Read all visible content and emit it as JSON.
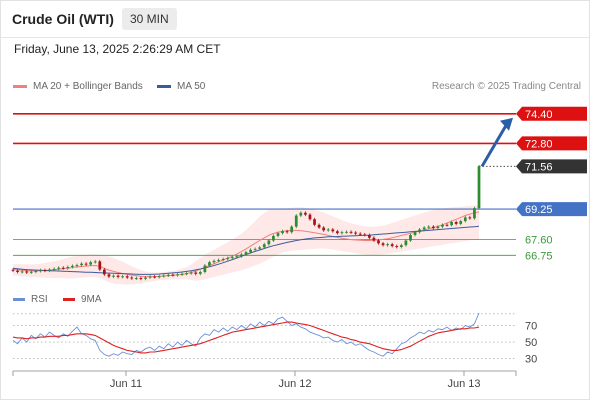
{
  "header": {
    "title": "Crude Oil (WTI)",
    "timeframe": "30 MIN"
  },
  "timestamp": "Friday, June 13, 2025 2:26:29 AM CET",
  "legend": {
    "ma20_label": "MA 20 + Bollinger Bands",
    "ma50_label": "MA 50",
    "credit": "Research © 2025 Trading Central"
  },
  "rsi_legend": {
    "rsi_label": "RSI",
    "ma_label": "9MA"
  },
  "colors": {
    "resistance": "#dd1111",
    "current": "#333333",
    "pivot": "#4472c4",
    "support": "#3a9a3a",
    "ma20": "#f08080",
    "bollinger_fill": "#fde0e0",
    "ma50": "#3b5c9a",
    "candle_up": "#2e8b2e",
    "candle_down": "#aa1111",
    "arrow": "#2b5ea8",
    "rsi": "#6a8fd8",
    "rsi_ma": "#dd2222"
  },
  "chart_data": [
    {
      "type": "candlestick",
      "title": "Crude Oil (WTI)",
      "x_ticks": [
        "Jun 11",
        "Jun 12",
        "Jun 13"
      ],
      "ylim": [
        65.2,
        75.2
      ],
      "levels": [
        {
          "value": 74.4,
          "label": "74.40",
          "kind": "resistance"
        },
        {
          "value": 72.8,
          "label": "72.80",
          "kind": "resistance"
        },
        {
          "value": 71.56,
          "label": "71.56",
          "kind": "current"
        },
        {
          "value": 69.25,
          "label": "69.25",
          "kind": "pivot"
        },
        {
          "value": 67.6,
          "label": "67.60",
          "kind": "support"
        },
        {
          "value": 66.75,
          "label": "66.75",
          "kind": "support"
        }
      ],
      "close": [
        65.92,
        65.85,
        65.88,
        65.82,
        65.86,
        65.9,
        65.95,
        65.92,
        65.98,
        66.02,
        66.08,
        66.05,
        66.12,
        66.18,
        66.22,
        66.3,
        66.25,
        66.38,
        66.42,
        65.98,
        65.72,
        65.6,
        65.65,
        65.58,
        65.62,
        65.55,
        65.5,
        65.52,
        65.48,
        65.55,
        65.6,
        65.58,
        65.62,
        65.66,
        65.7,
        65.68,
        65.72,
        65.75,
        65.78,
        65.82,
        65.75,
        65.85,
        66.2,
        66.38,
        66.45,
        66.5,
        66.55,
        66.6,
        66.65,
        66.7,
        66.8,
        66.92,
        67.05,
        67.1,
        67.18,
        67.35,
        67.55,
        67.8,
        67.95,
        68.05,
        68.0,
        68.3,
        68.9,
        69.05,
        68.95,
        68.7,
        68.4,
        68.25,
        68.1,
        68.15,
        68.05,
        67.95,
        68.0,
        68.02,
        67.98,
        67.92,
        67.88,
        67.85,
        67.7,
        67.55,
        67.4,
        67.3,
        67.35,
        67.25,
        67.2,
        67.3,
        67.55,
        67.85,
        68.0,
        68.15,
        68.25,
        68.3,
        68.22,
        68.3,
        68.4,
        68.38,
        68.55,
        68.45,
        68.6,
        68.8,
        68.75,
        69.3,
        71.56
      ],
      "ma20": [
        65.98,
        65.96,
        65.94,
        65.92,
        65.91,
        65.91,
        65.92,
        65.93,
        65.95,
        65.97,
        66.0,
        66.03,
        66.06,
        66.09,
        66.12,
        66.15,
        66.17,
        66.19,
        66.2,
        66.15,
        66.05,
        65.95,
        65.88,
        65.82,
        65.77,
        65.72,
        65.68,
        65.65,
        65.62,
        65.6,
        65.6,
        65.6,
        65.61,
        65.63,
        65.65,
        65.67,
        65.69,
        65.72,
        65.76,
        65.82,
        65.9,
        66.0,
        66.1,
        66.2,
        66.3,
        66.4,
        66.5,
        66.6,
        66.7,
        66.82,
        66.95,
        67.1,
        67.25,
        67.4,
        67.55,
        67.7,
        67.83,
        67.93,
        68.0,
        68.05,
        68.08,
        68.1,
        68.1,
        68.08,
        68.05,
        68.01,
        67.97,
        67.93,
        67.88,
        67.83,
        67.77,
        67.72,
        67.67,
        67.63,
        67.6,
        67.58,
        67.56,
        67.55,
        67.55,
        67.56,
        67.58,
        67.61,
        67.65,
        67.7,
        67.76,
        67.82,
        67.88,
        67.94,
        68.0,
        68.06,
        68.12,
        68.18,
        68.25,
        68.32,
        68.4,
        68.5,
        68.6,
        68.7,
        68.8,
        68.9,
        68.98,
        69.05,
        69.1
      ],
      "ma50": [
        66.05,
        66.02,
        66.0,
        65.98,
        65.96,
        65.95,
        65.94,
        65.93,
        65.92,
        65.91,
        65.9,
        65.89,
        65.88,
        65.87,
        65.86,
        65.85,
        65.84,
        65.83,
        65.82,
        65.81,
        65.8,
        65.79,
        65.78,
        65.77,
        65.76,
        65.75,
        65.74,
        65.73,
        65.72,
        65.72,
        65.72,
        65.73,
        65.74,
        65.76,
        65.78,
        65.8,
        65.82,
        65.85,
        65.88,
        65.92,
        65.96,
        66.01,
        66.07,
        66.13,
        66.2,
        66.27,
        66.35,
        66.43,
        66.52,
        66.61,
        66.7,
        66.79,
        66.88,
        66.96,
        67.04,
        67.12,
        67.2,
        67.27,
        67.33,
        67.39,
        67.45,
        67.5,
        67.55,
        67.59,
        67.63,
        67.66,
        67.69,
        67.71,
        67.73,
        67.75,
        67.76,
        67.77,
        67.78,
        67.79,
        67.8,
        67.81,
        67.82,
        67.83,
        67.84,
        67.86,
        67.88,
        67.9,
        67.92,
        67.94,
        67.96,
        67.98,
        68.0,
        68.02,
        68.04,
        68.06,
        68.08,
        68.1,
        68.12,
        68.14,
        68.16,
        68.18,
        68.2,
        68.22,
        68.24,
        68.26,
        68.28,
        68.3,
        68.32
      ],
      "bollinger_upper": [
        66.3,
        66.28,
        66.27,
        66.26,
        66.26,
        66.27,
        66.3,
        66.34,
        66.38,
        66.42,
        66.48,
        66.55,
        66.62,
        66.68,
        66.72,
        66.76,
        66.78,
        66.8,
        66.8,
        66.78,
        66.74,
        66.68,
        66.6,
        66.5,
        66.4,
        66.28,
        66.15,
        66.05,
        65.95,
        65.88,
        65.84,
        65.82,
        65.82,
        65.84,
        65.88,
        65.92,
        65.96,
        66.02,
        66.1,
        66.25,
        66.45,
        66.62,
        66.78,
        66.92,
        67.05,
        67.18,
        67.32,
        67.46,
        67.6,
        67.75,
        67.92,
        68.12,
        68.35,
        68.6,
        68.85,
        69.05,
        69.2,
        69.28,
        69.3,
        69.3,
        69.3,
        69.32,
        69.35,
        69.35,
        69.32,
        69.28,
        69.22,
        69.15,
        69.06,
        68.96,
        68.86,
        68.76,
        68.66,
        68.56,
        68.48,
        68.42,
        68.36,
        68.32,
        68.3,
        68.3,
        68.32,
        68.36,
        68.42,
        68.5,
        68.58,
        68.66,
        68.74,
        68.82,
        68.9,
        68.98,
        69.06,
        69.14,
        69.2,
        69.26,
        69.3,
        69.32,
        69.34,
        69.36,
        69.38,
        69.4,
        69.42,
        69.44,
        69.46
      ],
      "bollinger_lower": [
        65.66,
        65.64,
        65.62,
        65.6,
        65.58,
        65.56,
        65.55,
        65.54,
        65.53,
        65.52,
        65.52,
        65.51,
        65.5,
        65.5,
        65.52,
        65.54,
        65.56,
        65.58,
        65.6,
        65.52,
        65.4,
        65.3,
        65.24,
        65.2,
        65.18,
        65.17,
        65.18,
        65.2,
        65.24,
        65.28,
        65.32,
        65.36,
        65.4,
        65.42,
        65.44,
        65.45,
        65.46,
        65.46,
        65.45,
        65.42,
        65.38,
        65.4,
        65.45,
        65.52,
        65.58,
        65.64,
        65.7,
        65.76,
        65.82,
        65.88,
        65.95,
        66.02,
        66.1,
        66.2,
        66.3,
        66.42,
        66.55,
        66.68,
        66.8,
        66.9,
        66.96,
        67.0,
        67.02,
        67.04,
        67.06,
        67.08,
        67.1,
        67.12,
        67.12,
        67.1,
        67.06,
        67.02,
        66.98,
        66.94,
        66.9,
        66.86,
        66.82,
        66.78,
        66.76,
        66.76,
        66.78,
        66.8,
        66.84,
        66.88,
        66.92,
        66.96,
        67.0,
        67.04,
        67.08,
        67.12,
        67.16,
        67.2,
        67.24,
        67.28,
        67.32,
        67.36,
        67.4,
        67.44,
        67.48,
        67.52,
        67.56,
        67.6,
        67.62
      ]
    },
    {
      "type": "line",
      "title": "RSI",
      "ylim": [
        20,
        85
      ],
      "y_ticks": [
        70,
        50,
        30
      ],
      "series": [
        {
          "name": "RSI",
          "values": [
            52,
            48,
            55,
            50,
            58,
            54,
            60,
            56,
            62,
            58,
            55,
            60,
            57,
            63,
            68,
            60,
            58,
            54,
            52,
            40,
            35,
            33,
            36,
            34,
            38,
            36,
            35,
            40,
            38,
            42,
            44,
            40,
            45,
            42,
            48,
            44,
            50,
            46,
            52,
            48,
            45,
            55,
            60,
            58,
            65,
            62,
            67,
            63,
            68,
            65,
            70,
            66,
            72,
            68,
            74,
            70,
            75,
            72,
            78,
            80,
            75,
            70,
            72,
            68,
            66,
            62,
            60,
            58,
            55,
            56,
            52,
            50,
            53,
            48,
            50,
            46,
            48,
            44,
            40,
            38,
            35,
            33,
            38,
            36,
            42,
            48,
            50,
            55,
            58,
            62,
            60,
            64,
            62,
            66,
            65,
            68,
            64,
            67,
            65,
            70,
            68,
            72,
            85
          ]
        },
        {
          "name": "9MA",
          "values": [
            56,
            55,
            55,
            54,
            55,
            55,
            56,
            56,
            57,
            57,
            57,
            58,
            58,
            59,
            60,
            60,
            60,
            59,
            58,
            55,
            52,
            49,
            46,
            44,
            42,
            40,
            39,
            38,
            37,
            37,
            38,
            38,
            39,
            40,
            41,
            42,
            43,
            44,
            45,
            46,
            47,
            48,
            50,
            52,
            54,
            56,
            58,
            60,
            62,
            63,
            64,
            65,
            66,
            67,
            68,
            69,
            70,
            71,
            72,
            73,
            74,
            74,
            73,
            72,
            71,
            70,
            68,
            66,
            64,
            62,
            60,
            58,
            56,
            55,
            53,
            52,
            50,
            49,
            48,
            46,
            44,
            42,
            41,
            40,
            40,
            41,
            43,
            45,
            48,
            51,
            54,
            57,
            59,
            61,
            62,
            63,
            64,
            65,
            66,
            66,
            67,
            67,
            68
          ]
        }
      ]
    }
  ]
}
